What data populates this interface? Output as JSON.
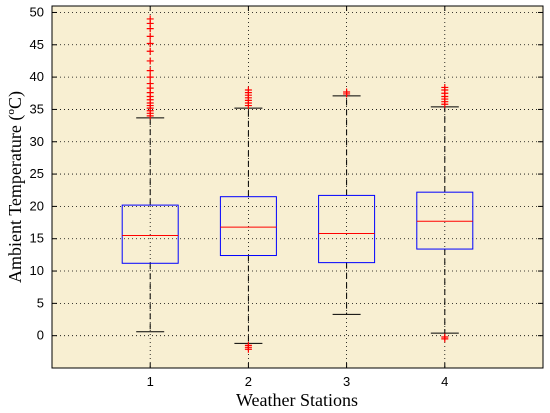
{
  "chart_data": {
    "type": "boxplot",
    "xlabel": "Weather Stations",
    "ylabel": "Ambient Temperature (ºC)",
    "ylim": [
      -5,
      51
    ],
    "yticks": [
      0,
      5,
      10,
      15,
      20,
      25,
      30,
      35,
      40,
      45,
      50
    ],
    "grid": "dotted, both axes",
    "colors": {
      "background": "#f8efd2",
      "box": "#0000ff",
      "median": "#ff0000",
      "outlier": "#ff0000",
      "whisker": "#000000"
    },
    "categories": [
      "1",
      "2",
      "3",
      "4"
    ],
    "boxes": [
      {
        "label": "1",
        "min": 0.6,
        "q1": 11.2,
        "median": 15.5,
        "q3": 20.2,
        "max": 33.7,
        "outliers": [
          34,
          34.4,
          34.8,
          35.2,
          35.6,
          36,
          36.5,
          37,
          37.6,
          38.3,
          39,
          40,
          41,
          42.5,
          44,
          45.2,
          46.3,
          47.5,
          48.3,
          49
        ]
      },
      {
        "label": "2",
        "min": -1.2,
        "q1": 12.4,
        "median": 16.8,
        "q3": 21.5,
        "max": 35.2,
        "outliers": [
          -1.5,
          -1.8,
          -2.1,
          35.6,
          36,
          36.4,
          36.8,
          37.2,
          37.6,
          38
        ]
      },
      {
        "label": "3",
        "min": 3.3,
        "q1": 11.3,
        "median": 15.8,
        "q3": 21.7,
        "max": 37.1,
        "outliers": [
          37.4,
          37.7
        ]
      },
      {
        "label": "4",
        "min": 0.4,
        "q1": 13.4,
        "median": 17.7,
        "q3": 22.2,
        "max": 35.4,
        "outliers": [
          -0.2,
          -0.5,
          35.8,
          36.2,
          36.6,
          37,
          37.5,
          38,
          38.4
        ]
      }
    ]
  }
}
